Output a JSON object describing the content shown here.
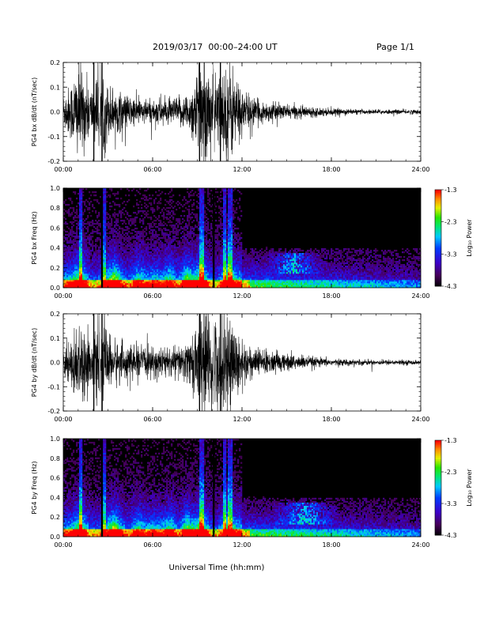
{
  "header": {
    "title": "2019/03/17  00:00–24:00 UT",
    "page": "Page 1/1"
  },
  "xlabel": "Universal Time (hh:mm)",
  "colorbar": {
    "label": "Log₁₀ Power",
    "ticks": [
      "-1.3",
      "-2.3",
      "-3.3",
      "-4.3"
    ],
    "range": [
      -4.3,
      -1.3
    ],
    "colormap": "rainbow (black-purple-blue-cyan-green-yellow-orange-red)"
  },
  "chart_data": [
    {
      "type": "line",
      "ylabel": "PG4 bx dB/dt (nT/sec)",
      "xlim": [
        "00:00",
        "24:00"
      ],
      "ylim": [
        -0.2,
        0.2
      ],
      "x_ticks": [
        "00:00",
        "06:00",
        "12:00",
        "18:00",
        "24:00"
      ],
      "y_ticks": [
        "0.2",
        "0.1",
        "0.0",
        "-0.1",
        "-0.2"
      ],
      "series": [
        {
          "values_envelope_by_hour": [
            [
              0,
              0.08
            ],
            [
              0.5,
              0.12
            ],
            [
              1,
              0.22
            ],
            [
              1.5,
              0.15
            ],
            [
              2,
              0.1
            ],
            [
              2.6,
              0.22
            ],
            [
              3,
              0.12
            ],
            [
              3.5,
              0.1
            ],
            [
              4,
              0.08
            ],
            [
              5,
              0.06
            ],
            [
              6,
              0.05
            ],
            [
              6.5,
              0.07
            ],
            [
              7,
              0.05
            ],
            [
              8,
              0.07
            ],
            [
              8.5,
              0.09
            ],
            [
              9.2,
              0.22
            ],
            [
              10,
              0.2
            ],
            [
              10.5,
              0.16
            ],
            [
              11.2,
              0.22
            ],
            [
              12,
              0.1
            ],
            [
              13,
              0.05
            ],
            [
              14,
              0.04
            ],
            [
              15,
              0.03
            ],
            [
              16,
              0.025
            ],
            [
              18,
              0.015
            ],
            [
              20,
              0.01
            ],
            [
              24,
              0.01
            ]
          ]
        }
      ]
    },
    {
      "type": "heatmap",
      "ylabel": "PG4 bx Freq (Hz)",
      "xlim": [
        "00:00",
        "24:00"
      ],
      "ylim": [
        0.0,
        1.0
      ],
      "x_ticks": [
        "00:00",
        "06:00",
        "12:00",
        "18:00",
        "24:00"
      ],
      "y_ticks": [
        "1.0",
        "0.8",
        "0.6",
        "0.4",
        "0.2",
        "0.0"
      ],
      "gaps_hours": [
        2.6,
        10.1
      ],
      "intense_columns_hours": [
        1.2,
        2.7,
        9.3,
        10.8,
        11.2
      ],
      "feature_blob": {
        "x_hours": [
          13.5,
          17.5
        ],
        "y_hz": [
          0.15,
          0.35
        ]
      }
    },
    {
      "type": "line",
      "ylabel": "PG4 by dB/dt (nT/sec)",
      "xlim": [
        "00:00",
        "24:00"
      ],
      "ylim": [
        -0.2,
        0.2
      ],
      "x_ticks": [
        "00:00",
        "06:00",
        "12:00",
        "18:00",
        "24:00"
      ],
      "y_ticks": [
        "0.2",
        "0.1",
        "0.0",
        "-0.1",
        "-0.2"
      ],
      "series": [
        {
          "values_envelope_by_hour": [
            [
              0,
              0.07
            ],
            [
              0.5,
              0.1
            ],
            [
              1,
              0.18
            ],
            [
              1.5,
              0.14
            ],
            [
              2,
              0.1
            ],
            [
              2.6,
              0.22
            ],
            [
              3,
              0.12
            ],
            [
              3.5,
              0.1
            ],
            [
              4,
              0.08
            ],
            [
              5,
              0.07
            ],
            [
              6,
              0.06
            ],
            [
              6.5,
              0.08
            ],
            [
              7,
              0.06
            ],
            [
              8,
              0.08
            ],
            [
              8.5,
              0.1
            ],
            [
              9.2,
              0.22
            ],
            [
              10,
              0.22
            ],
            [
              10.5,
              0.2
            ],
            [
              11.2,
              0.22
            ],
            [
              12,
              0.1
            ],
            [
              13,
              0.06
            ],
            [
              14,
              0.05
            ],
            [
              15,
              0.04
            ],
            [
              16,
              0.03
            ],
            [
              18,
              0.015
            ],
            [
              20,
              0.012
            ],
            [
              24,
              0.01
            ]
          ]
        }
      ]
    },
    {
      "type": "heatmap",
      "ylabel": "PG4 by Freq (Hz)",
      "xlim": [
        "00:00",
        "24:00"
      ],
      "ylim": [
        0.0,
        1.0
      ],
      "x_ticks": [
        "00:00",
        "06:00",
        "12:00",
        "18:00",
        "24:00"
      ],
      "y_ticks": [
        "1.0",
        "0.8",
        "0.6",
        "0.4",
        "0.2",
        "0.0"
      ],
      "gaps_hours": [
        2.6,
        10.1
      ],
      "intense_columns_hours": [
        1.2,
        2.7,
        9.3,
        10.8,
        11.2
      ],
      "feature_blob": {
        "x_hours": [
          14.0,
          18.5
        ],
        "y_hz": [
          0.12,
          0.35
        ]
      }
    }
  ]
}
